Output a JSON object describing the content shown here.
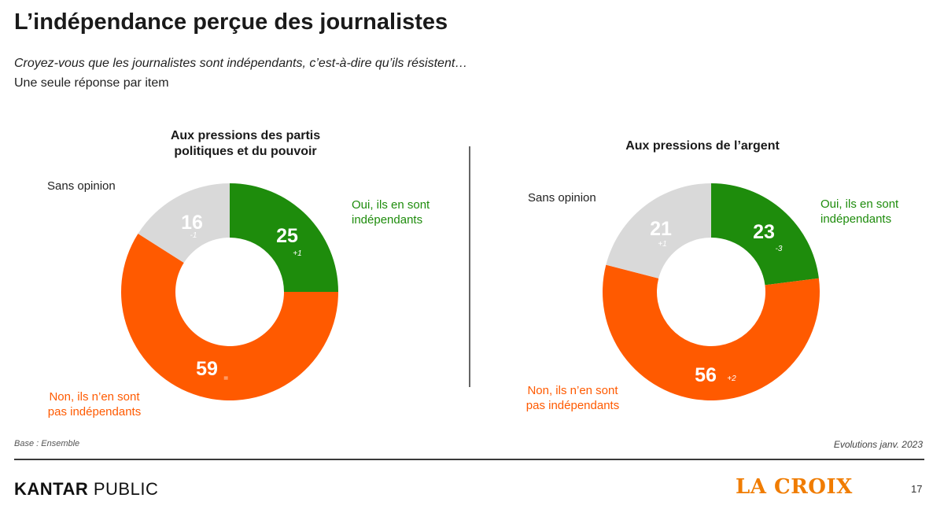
{
  "header": {
    "title": "L’indépendance perçue des journalistes",
    "subtitle": "Croyez-vous que les journalistes sont indépendants, c’est-à-dire qu’ils résistent…",
    "instruction": "Une seule réponse par item"
  },
  "colors": {
    "oui": "#1e8c0c",
    "non": "#ff5a00",
    "sans": "#d9d9d9"
  },
  "chart_data": [
    {
      "type": "pie",
      "title": [
        "Aux pressions des partis",
        "politiques et du pouvoir"
      ],
      "slices": [
        {
          "label": [
            "Oui, ils en sont",
            "indépendants"
          ],
          "value": 25,
          "evolution": "+1",
          "color": "#1e8c0c"
        },
        {
          "label": [
            "Non, ils n’en sont",
            "pas indépendants"
          ],
          "value": 59,
          "evolution": "=",
          "color": "#ff5a00"
        },
        {
          "label": [
            "Sans opinion"
          ],
          "value": 16,
          "evolution": "-1",
          "color": "#d9d9d9"
        }
      ]
    },
    {
      "type": "pie",
      "title": [
        "Aux pressions de l’argent"
      ],
      "slices": [
        {
          "label": [
            "Oui, ils en sont",
            "indépendants"
          ],
          "value": 23,
          "evolution": "-3",
          "color": "#1e8c0c"
        },
        {
          "label": [
            "Non, ils n’en sont",
            "pas indépendants"
          ],
          "value": 56,
          "evolution": "+2",
          "color": "#ff5a00"
        },
        {
          "label": [
            "Sans opinion"
          ],
          "value": 21,
          "evolution": "+1",
          "color": "#d9d9d9"
        }
      ]
    }
  ],
  "footer": {
    "base": "Base : Ensemble",
    "evolutions": "Evolutions janv. 2023",
    "kantar_bold": "KANTAR",
    "kantar_rest": " PUBLIC",
    "lacroix": "LA CROIX",
    "page_number": "17"
  }
}
